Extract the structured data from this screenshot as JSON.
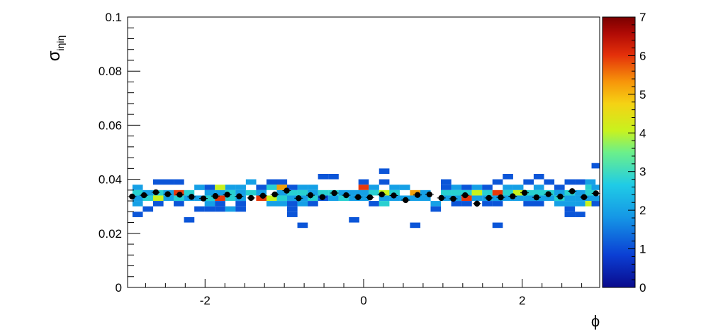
{
  "chart_data": {
    "type": "heatmap",
    "title": "",
    "xlabel": "ϕ",
    "ylabel_main": "σ",
    "ylabel_sub": "iηiη",
    "xlim": [
      -2.977,
      2.977
    ],
    "ylim": [
      0,
      0.1
    ],
    "x_ticks": [
      -2,
      0,
      2
    ],
    "x_tick_labels": [
      "-2",
      "0",
      "2"
    ],
    "y_ticks": [
      0,
      0.02,
      0.04,
      0.06,
      0.08,
      0.1
    ],
    "y_tick_labels": [
      "0",
      "0.02",
      "0.04",
      "0.06",
      "0.08",
      "0.1"
    ],
    "colorbar": {
      "min": 0,
      "max": 7,
      "ticks": [
        0,
        1,
        2,
        3,
        4,
        5,
        6,
        7
      ],
      "tick_labels": [
        "0",
        "1",
        "2",
        "3",
        "4",
        "5",
        "6",
        "7"
      ]
    },
    "grid": false,
    "bin_width": {
      "x": 0.131,
      "y": 0.002
    },
    "cells": [
      {
        "x": -2.85,
        "y": 0.037,
        "v": 2
      },
      {
        "x": -2.85,
        "y": 0.035,
        "v": 3
      },
      {
        "x": -2.85,
        "y": 0.033,
        "v": 2
      },
      {
        "x": -2.85,
        "y": 0.031,
        "v": 2
      },
      {
        "x": -2.85,
        "y": 0.027,
        "v": 1
      },
      {
        "x": -2.72,
        "y": 0.035,
        "v": 2
      },
      {
        "x": -2.72,
        "y": 0.033,
        "v": 3
      },
      {
        "x": -2.72,
        "y": 0.029,
        "v": 1
      },
      {
        "x": -2.59,
        "y": 0.039,
        "v": 1
      },
      {
        "x": -2.59,
        "y": 0.035,
        "v": 3
      },
      {
        "x": -2.59,
        "y": 0.033,
        "v": 4
      },
      {
        "x": -2.59,
        "y": 0.031,
        "v": 1
      },
      {
        "x": -2.46,
        "y": 0.039,
        "v": 1
      },
      {
        "x": -2.46,
        "y": 0.035,
        "v": 2
      },
      {
        "x": -2.46,
        "y": 0.033,
        "v": 2
      },
      {
        "x": -2.33,
        "y": 0.039,
        "v": 1
      },
      {
        "x": -2.33,
        "y": 0.035,
        "v": 6
      },
      {
        "x": -2.33,
        "y": 0.033,
        "v": 3
      },
      {
        "x": -2.33,
        "y": 0.031,
        "v": 1
      },
      {
        "x": -2.2,
        "y": 0.035,
        "v": 3
      },
      {
        "x": -2.2,
        "y": 0.033,
        "v": 2
      },
      {
        "x": -2.2,
        "y": 0.025,
        "v": 1
      },
      {
        "x": -2.07,
        "y": 0.037,
        "v": 2
      },
      {
        "x": -2.07,
        "y": 0.033,
        "v": 2
      },
      {
        "x": -2.07,
        "y": 0.029,
        "v": 1
      },
      {
        "x": -1.94,
        "y": 0.037,
        "v": 1
      },
      {
        "x": -1.94,
        "y": 0.035,
        "v": 2
      },
      {
        "x": -1.94,
        "y": 0.033,
        "v": 3
      },
      {
        "x": -1.94,
        "y": 0.031,
        "v": 2
      },
      {
        "x": -1.94,
        "y": 0.029,
        "v": 1
      },
      {
        "x": -1.81,
        "y": 0.037,
        "v": 4
      },
      {
        "x": -1.81,
        "y": 0.035,
        "v": 2
      },
      {
        "x": -1.81,
        "y": 0.033,
        "v": 6
      },
      {
        "x": -1.81,
        "y": 0.031,
        "v": 1
      },
      {
        "x": -1.81,
        "y": 0.029,
        "v": 1
      },
      {
        "x": -1.68,
        "y": 0.037,
        "v": 2
      },
      {
        "x": -1.68,
        "y": 0.035,
        "v": 3
      },
      {
        "x": -1.68,
        "y": 0.033,
        "v": 3
      },
      {
        "x": -1.68,
        "y": 0.029,
        "v": 2
      },
      {
        "x": -1.55,
        "y": 0.037,
        "v": 2
      },
      {
        "x": -1.55,
        "y": 0.035,
        "v": 2
      },
      {
        "x": -1.55,
        "y": 0.033,
        "v": 2
      },
      {
        "x": -1.55,
        "y": 0.031,
        "v": 1
      },
      {
        "x": -1.55,
        "y": 0.029,
        "v": 1
      },
      {
        "x": -1.42,
        "y": 0.039,
        "v": 2
      },
      {
        "x": -1.42,
        "y": 0.035,
        "v": 3
      },
      {
        "x": -1.29,
        "y": 0.037,
        "v": 1
      },
      {
        "x": -1.29,
        "y": 0.035,
        "v": 2
      },
      {
        "x": -1.29,
        "y": 0.033,
        "v": 6
      },
      {
        "x": -1.16,
        "y": 0.039,
        "v": 1
      },
      {
        "x": -1.16,
        "y": 0.037,
        "v": 3
      },
      {
        "x": -1.16,
        "y": 0.033,
        "v": 4
      },
      {
        "x": -1.16,
        "y": 0.031,
        "v": 2
      },
      {
        "x": -1.03,
        "y": 0.039,
        "v": 1
      },
      {
        "x": -1.03,
        "y": 0.037,
        "v": 5
      },
      {
        "x": -1.03,
        "y": 0.035,
        "v": 2
      },
      {
        "x": -1.03,
        "y": 0.033,
        "v": 3
      },
      {
        "x": -1.03,
        "y": 0.031,
        "v": 2
      },
      {
        "x": -0.9,
        "y": 0.037,
        "v": 1
      },
      {
        "x": -0.9,
        "y": 0.035,
        "v": 3
      },
      {
        "x": -0.9,
        "y": 0.033,
        "v": 2
      },
      {
        "x": -0.9,
        "y": 0.031,
        "v": 1
      },
      {
        "x": -0.9,
        "y": 0.029,
        "v": 1
      },
      {
        "x": -0.9,
        "y": 0.027,
        "v": 1
      },
      {
        "x": -0.77,
        "y": 0.037,
        "v": 2
      },
      {
        "x": -0.77,
        "y": 0.035,
        "v": 3
      },
      {
        "x": -0.77,
        "y": 0.033,
        "v": 2
      },
      {
        "x": -0.77,
        "y": 0.031,
        "v": 2
      },
      {
        "x": -0.77,
        "y": 0.023,
        "v": 1
      },
      {
        "x": -0.64,
        "y": 0.037,
        "v": 2
      },
      {
        "x": -0.64,
        "y": 0.035,
        "v": 2
      },
      {
        "x": -0.64,
        "y": 0.033,
        "v": 3
      },
      {
        "x": -0.64,
        "y": 0.031,
        "v": 1
      },
      {
        "x": -0.51,
        "y": 0.041,
        "v": 1
      },
      {
        "x": -0.51,
        "y": 0.035,
        "v": 3
      },
      {
        "x": -0.51,
        "y": 0.033,
        "v": 1
      },
      {
        "x": -0.38,
        "y": 0.041,
        "v": 1
      },
      {
        "x": -0.38,
        "y": 0.035,
        "v": 3
      },
      {
        "x": -0.38,
        "y": 0.033,
        "v": 2
      },
      {
        "x": -0.25,
        "y": 0.035,
        "v": 2
      },
      {
        "x": -0.25,
        "y": 0.033,
        "v": 3
      },
      {
        "x": -0.12,
        "y": 0.035,
        "v": 2
      },
      {
        "x": -0.12,
        "y": 0.033,
        "v": 2
      },
      {
        "x": -0.12,
        "y": 0.025,
        "v": 1
      },
      {
        "x": 0.0,
        "y": 0.039,
        "v": 1
      },
      {
        "x": 0.0,
        "y": 0.037,
        "v": 6
      },
      {
        "x": 0.0,
        "y": 0.035,
        "v": 2
      },
      {
        "x": 0.0,
        "y": 0.033,
        "v": 2
      },
      {
        "x": 0.13,
        "y": 0.037,
        "v": 2
      },
      {
        "x": 0.13,
        "y": 0.035,
        "v": 3
      },
      {
        "x": 0.13,
        "y": 0.031,
        "v": 1
      },
      {
        "x": 0.26,
        "y": 0.043,
        "v": 1
      },
      {
        "x": 0.26,
        "y": 0.039,
        "v": 1
      },
      {
        "x": 0.26,
        "y": 0.035,
        "v": 4
      },
      {
        "x": 0.26,
        "y": 0.033,
        "v": 2
      },
      {
        "x": 0.26,
        "y": 0.031,
        "v": 3
      },
      {
        "x": 0.39,
        "y": 0.037,
        "v": 2
      },
      {
        "x": 0.39,
        "y": 0.035,
        "v": 3
      },
      {
        "x": 0.39,
        "y": 0.033,
        "v": 2
      },
      {
        "x": 0.52,
        "y": 0.037,
        "v": 2
      },
      {
        "x": 0.52,
        "y": 0.033,
        "v": 2
      },
      {
        "x": 0.65,
        "y": 0.035,
        "v": 5
      },
      {
        "x": 0.65,
        "y": 0.033,
        "v": 2
      },
      {
        "x": 0.65,
        "y": 0.023,
        "v": 1
      },
      {
        "x": 0.78,
        "y": 0.035,
        "v": 2
      },
      {
        "x": 0.78,
        "y": 0.033,
        "v": 2
      },
      {
        "x": 0.91,
        "y": 0.031,
        "v": 2
      },
      {
        "x": 0.91,
        "y": 0.029,
        "v": 1
      },
      {
        "x": 1.04,
        "y": 0.039,
        "v": 1
      },
      {
        "x": 1.04,
        "y": 0.037,
        "v": 1
      },
      {
        "x": 1.04,
        "y": 0.035,
        "v": 3
      },
      {
        "x": 1.04,
        "y": 0.033,
        "v": 2
      },
      {
        "x": 1.17,
        "y": 0.037,
        "v": 2
      },
      {
        "x": 1.17,
        "y": 0.035,
        "v": 3
      },
      {
        "x": 1.17,
        "y": 0.033,
        "v": 2
      },
      {
        "x": 1.17,
        "y": 0.031,
        "v": 1
      },
      {
        "x": 1.3,
        "y": 0.037,
        "v": 1
      },
      {
        "x": 1.3,
        "y": 0.035,
        "v": 3
      },
      {
        "x": 1.3,
        "y": 0.033,
        "v": 6
      },
      {
        "x": 1.3,
        "y": 0.031,
        "v": 1
      },
      {
        "x": 1.43,
        "y": 0.037,
        "v": 2
      },
      {
        "x": 1.43,
        "y": 0.035,
        "v": 4
      },
      {
        "x": 1.43,
        "y": 0.033,
        "v": 2
      },
      {
        "x": 1.56,
        "y": 0.037,
        "v": 1
      },
      {
        "x": 1.56,
        "y": 0.035,
        "v": 3
      },
      {
        "x": 1.56,
        "y": 0.033,
        "v": 2
      },
      {
        "x": 1.56,
        "y": 0.031,
        "v": 1
      },
      {
        "x": 1.69,
        "y": 0.039,
        "v": 1
      },
      {
        "x": 1.69,
        "y": 0.035,
        "v": 6
      },
      {
        "x": 1.69,
        "y": 0.033,
        "v": 2
      },
      {
        "x": 1.69,
        "y": 0.031,
        "v": 1
      },
      {
        "x": 1.69,
        "y": 0.023,
        "v": 1
      },
      {
        "x": 1.82,
        "y": 0.041,
        "v": 1
      },
      {
        "x": 1.82,
        "y": 0.037,
        "v": 2
      },
      {
        "x": 1.82,
        "y": 0.035,
        "v": 3
      },
      {
        "x": 1.82,
        "y": 0.033,
        "v": 2
      },
      {
        "x": 1.95,
        "y": 0.037,
        "v": 2
      },
      {
        "x": 1.95,
        "y": 0.035,
        "v": 4
      },
      {
        "x": 1.95,
        "y": 0.033,
        "v": 2
      },
      {
        "x": 2.08,
        "y": 0.039,
        "v": 1
      },
      {
        "x": 2.08,
        "y": 0.035,
        "v": 3
      },
      {
        "x": 2.08,
        "y": 0.033,
        "v": 2
      },
      {
        "x": 2.08,
        "y": 0.031,
        "v": 1
      },
      {
        "x": 2.21,
        "y": 0.041,
        "v": 1
      },
      {
        "x": 2.21,
        "y": 0.037,
        "v": 2
      },
      {
        "x": 2.21,
        "y": 0.035,
        "v": 3
      },
      {
        "x": 2.21,
        "y": 0.033,
        "v": 2
      },
      {
        "x": 2.21,
        "y": 0.031,
        "v": 1
      },
      {
        "x": 2.34,
        "y": 0.039,
        "v": 1
      },
      {
        "x": 2.34,
        "y": 0.035,
        "v": 3
      },
      {
        "x": 2.34,
        "y": 0.033,
        "v": 2
      },
      {
        "x": 2.47,
        "y": 0.037,
        "v": 1
      },
      {
        "x": 2.47,
        "y": 0.035,
        "v": 2
      },
      {
        "x": 2.47,
        "y": 0.033,
        "v": 3
      },
      {
        "x": 2.47,
        "y": 0.031,
        "v": 2
      },
      {
        "x": 2.6,
        "y": 0.039,
        "v": 1
      },
      {
        "x": 2.6,
        "y": 0.035,
        "v": 3
      },
      {
        "x": 2.6,
        "y": 0.033,
        "v": 2
      },
      {
        "x": 2.6,
        "y": 0.031,
        "v": 2
      },
      {
        "x": 2.6,
        "y": 0.029,
        "v": 1
      },
      {
        "x": 2.6,
        "y": 0.027,
        "v": 1
      },
      {
        "x": 2.73,
        "y": 0.039,
        "v": 1
      },
      {
        "x": 2.73,
        "y": 0.035,
        "v": 2
      },
      {
        "x": 2.73,
        "y": 0.033,
        "v": 2
      },
      {
        "x": 2.73,
        "y": 0.031,
        "v": 2
      },
      {
        "x": 2.73,
        "y": 0.027,
        "v": 1
      },
      {
        "x": 2.86,
        "y": 0.039,
        "v": 2
      },
      {
        "x": 2.86,
        "y": 0.037,
        "v": 3
      },
      {
        "x": 2.86,
        "y": 0.035,
        "v": 3
      },
      {
        "x": 2.86,
        "y": 0.033,
        "v": 2
      },
      {
        "x": 2.86,
        "y": 0.031,
        "v": 4
      },
      {
        "x": 2.94,
        "y": 0.045,
        "v": 1
      },
      {
        "x": 2.94,
        "y": 0.037,
        "v": 2
      },
      {
        "x": 2.94,
        "y": 0.033,
        "v": 2
      },
      {
        "x": 2.94,
        "y": 0.031,
        "v": 1
      }
    ],
    "profile_series": {
      "name": "",
      "x": [
        -2.92,
        -2.77,
        -2.62,
        -2.47,
        -2.32,
        -2.17,
        -2.02,
        -1.87,
        -1.72,
        -1.57,
        -1.42,
        -1.27,
        -1.12,
        -0.97,
        -0.82,
        -0.67,
        -0.52,
        -0.37,
        -0.22,
        -0.07,
        0.08,
        0.23,
        0.38,
        0.53,
        0.68,
        0.83,
        0.98,
        1.13,
        1.28,
        1.43,
        1.58,
        1.73,
        1.88,
        2.03,
        2.18,
        2.33,
        2.48,
        2.63,
        2.78,
        2.93
      ],
      "y": [
        0.0336,
        0.0341,
        0.0352,
        0.0345,
        0.0343,
        0.0335,
        0.0329,
        0.0338,
        0.0343,
        0.0337,
        0.0331,
        0.0339,
        0.0344,
        0.0358,
        0.033,
        0.0341,
        0.0334,
        0.0349,
        0.0341,
        0.0334,
        0.0333,
        0.0344,
        0.034,
        0.0323,
        0.0342,
        0.0344,
        0.0331,
        0.0328,
        0.0341,
        0.031,
        0.0331,
        0.0333,
        0.0337,
        0.035,
        0.0333,
        0.0345,
        0.0336,
        0.0356,
        0.0334,
        0.0348
      ],
      "yerr": [
        0.0006,
        0.0005,
        0.0005,
        0.0005,
        0.0005,
        0.0005,
        0.0005,
        0.0005,
        0.0005,
        0.0005,
        0.0005,
        0.0005,
        0.0005,
        0.0005,
        0.0011,
        0.0012,
        0.0005,
        0.0005,
        0.0005,
        0.0005,
        0.0005,
        0.0005,
        0.0005,
        0.0008,
        0.0005,
        0.0005,
        0.0005,
        0.0005,
        0.0005,
        0.0012,
        0.0005,
        0.0005,
        0.0005,
        0.0005,
        0.0005,
        0.0005,
        0.0005,
        0.0005,
        0.0005,
        0.0005
      ]
    }
  }
}
